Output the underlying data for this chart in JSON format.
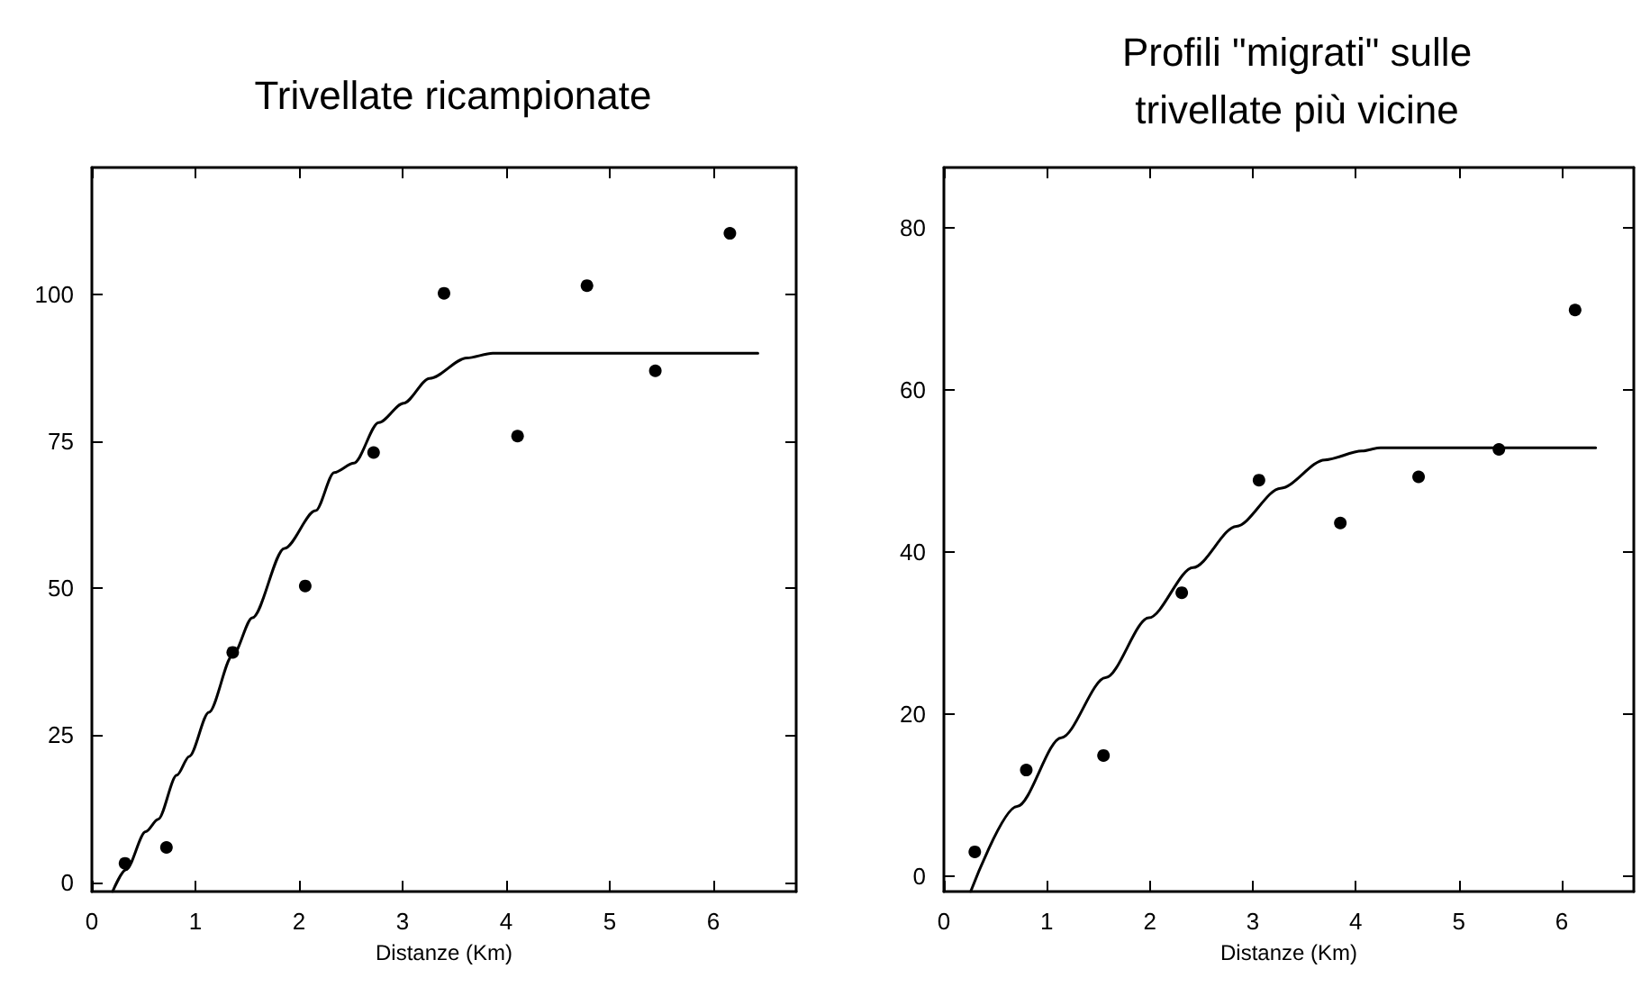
{
  "chart_data": [
    {
      "type": "scatter",
      "title": "Trivellate ricampionate",
      "xlabel": "Distanze (Km)",
      "xlim": [
        0,
        6.8
      ],
      "xticks": [
        0,
        1,
        2,
        3,
        4,
        5,
        6
      ],
      "ylim": [
        -1.6,
        121.6
      ],
      "yticks": [
        0,
        25,
        50,
        75,
        100
      ],
      "grid": false,
      "series": [
        {
          "color": "#000000",
          "marker": "circle",
          "x": [
            0.32,
            0.72,
            1.36,
            2.06,
            2.72,
            3.4,
            4.11,
            4.78,
            5.44,
            6.16
          ],
          "values": [
            3.2,
            5.9,
            39.1,
            50.4,
            73.1,
            100.2,
            75.9,
            101.5,
            87.0,
            110.4
          ]
        },
        {
          "type": "line",
          "color": "#000000",
          "marker": "none",
          "line_style": "solid",
          "x": [
            0.2,
            0.33,
            0.52,
            0.64,
            0.82,
            0.94,
            1.13,
            1.36,
            1.55,
            1.86,
            2.16,
            2.34,
            2.53,
            2.77,
            3.01,
            3.26,
            3.62,
            3.87,
            6.43
          ],
          "values": [
            -1.6,
            2.1,
            8.6,
            10.7,
            18.2,
            21.4,
            28.9,
            38.6,
            45,
            56.8,
            63.2,
            69.7,
            71.3,
            78.2,
            81.5,
            85.7,
            89.2,
            90,
            90
          ]
        }
      ]
    },
    {
      "type": "scatter",
      "title": "Profili \"migrati\" sulle\ntrivellate più vicine",
      "xlabel": "Distanze (Km)",
      "xlim": [
        0,
        6.7
      ],
      "xticks": [
        0,
        1,
        2,
        3,
        4,
        5,
        6
      ],
      "ylim": [
        -1.9,
        87.5
      ],
      "yticks": [
        0,
        20,
        40,
        60,
        80
      ],
      "grid": false,
      "series": [
        {
          "color": "#000000",
          "marker": "circle",
          "x": [
            0.3,
            0.8,
            1.55,
            2.31,
            3.06,
            3.85,
            4.61,
            5.39,
            6.13
          ],
          "values": [
            3.0,
            13.1,
            14.9,
            35.0,
            48.9,
            43.6,
            49.3,
            52.7,
            69.9
          ]
        },
        {
          "type": "line",
          "color": "#000000",
          "marker": "none",
          "line_style": "solid",
          "x": [
            0.26,
            0.71,
            1.14,
            1.57,
            1.99,
            2.42,
            2.84,
            3.27,
            3.7,
            4.06,
            4.24,
            6.33
          ],
          "values": [
            -1.9,
            8.6,
            17.1,
            24.5,
            31.9,
            38.1,
            43.2,
            47.9,
            51.4,
            52.5,
            52.9,
            52.9
          ]
        }
      ]
    }
  ]
}
